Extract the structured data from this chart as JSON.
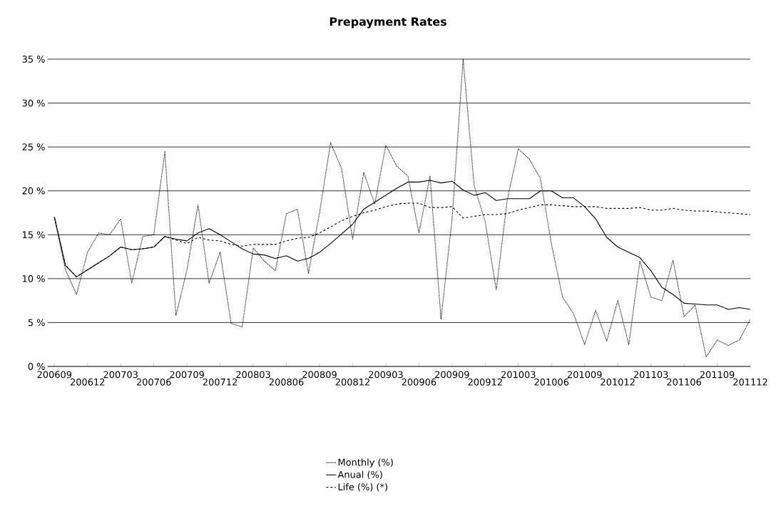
{
  "chart_data": {
    "type": "line",
    "title": "Prepayment Rates",
    "categories": [
      "200609",
      null,
      null,
      "200612",
      null,
      null,
      "200703",
      null,
      null,
      "200706",
      null,
      null,
      "200709",
      null,
      null,
      "200712",
      null,
      null,
      "200803",
      null,
      null,
      "200806",
      null,
      null,
      "200809",
      null,
      null,
      "200812",
      null,
      null,
      "200903",
      null,
      null,
      "200906",
      null,
      null,
      "200909",
      null,
      null,
      "200912",
      null,
      null,
      "201003",
      null,
      null,
      "201006",
      null,
      null,
      "201009",
      null,
      null,
      "201012",
      null,
      null,
      "201103",
      null,
      null,
      "201106",
      null,
      null,
      "201109",
      null,
      null,
      "201112"
    ],
    "ylim": [
      0,
      35
    ],
    "yticks": [
      {
        "value": 0,
        "label": "0 %"
      },
      {
        "value": 5,
        "label": "5 %"
      },
      {
        "value": 10,
        "label": "10 %"
      },
      {
        "value": 15,
        "label": "15 %"
      },
      {
        "value": 20,
        "label": "20 %"
      },
      {
        "value": 25,
        "label": "25 %"
      },
      {
        "value": 30,
        "label": "30 %"
      },
      {
        "value": 35,
        "label": "35 %"
      }
    ],
    "grid": "y",
    "legend": "bottom",
    "series": [
      {
        "name": "Monthly (%)",
        "color": "#000000",
        "line_style": "dotted",
        "values": [
          17.0,
          11.0,
          8.2,
          13.0,
          15.2,
          15.0,
          16.8,
          9.5,
          14.8,
          15.0,
          24.5,
          5.8,
          11.0,
          18.4,
          9.5,
          13.0,
          4.9,
          4.5,
          13.5,
          12.0,
          10.9,
          17.4,
          17.9,
          10.6,
          17.5,
          25.5,
          22.5,
          14.5,
          22.1,
          18.5,
          25.2,
          22.8,
          21.7,
          15.2,
          21.7,
          5.4,
          16.8,
          35.0,
          20.6,
          16.5,
          8.7,
          19.0,
          24.8,
          23.6,
          21.4,
          13.9,
          7.9,
          6.0,
          2.5,
          6.4,
          2.9,
          7.5,
          2.5,
          12.0,
          7.9,
          7.5,
          12.1,
          5.7,
          7.0,
          1.1,
          3.0,
          2.4,
          3.0,
          5.4
        ]
      },
      {
        "name": "Anual (%)",
        "color": "#000000",
        "line_style": "solid",
        "values": [
          17.0,
          11.5,
          10.2,
          11.0,
          11.8,
          12.6,
          13.6,
          13.3,
          13.4,
          13.6,
          14.8,
          14.5,
          14.3,
          15.2,
          15.7,
          15.0,
          14.2,
          13.4,
          12.8,
          12.7,
          12.3,
          12.6,
          12.0,
          12.3,
          13.0,
          14.0,
          15.1,
          16.2,
          17.9,
          18.7,
          19.5,
          20.3,
          21.0,
          21.0,
          21.2,
          20.9,
          21.1,
          20.1,
          19.5,
          19.8,
          18.9,
          19.1,
          19.1,
          19.1,
          20.0,
          20.0,
          19.2,
          19.2,
          18.2,
          16.8,
          14.7,
          13.6,
          13.0,
          12.4,
          10.9,
          9.0,
          8.2,
          7.2,
          7.1,
          7.0,
          7.0,
          6.5,
          6.7,
          6.5
        ]
      },
      {
        "name": "Life (%) (*)",
        "color": "#000000",
        "line_style": "dashed",
        "values": [
          17.0,
          11.5,
          10.2,
          11.0,
          11.8,
          12.6,
          13.6,
          13.3,
          13.4,
          13.6,
          14.8,
          14.4,
          14.0,
          14.7,
          14.4,
          14.3,
          13.9,
          13.7,
          13.9,
          13.9,
          13.9,
          14.3,
          14.6,
          14.7,
          15.2,
          15.9,
          16.6,
          17.1,
          17.5,
          17.8,
          18.2,
          18.5,
          18.6,
          18.6,
          18.1,
          18.1,
          18.2,
          16.9,
          17.1,
          17.3,
          17.3,
          17.4,
          17.8,
          18.1,
          18.4,
          18.4,
          18.3,
          18.2,
          18.2,
          18.2,
          18.0,
          18.0,
          18.0,
          18.1,
          17.8,
          17.8,
          18.0,
          17.8,
          17.7,
          17.7,
          17.6,
          17.5,
          17.4,
          17.3
        ]
      }
    ]
  }
}
